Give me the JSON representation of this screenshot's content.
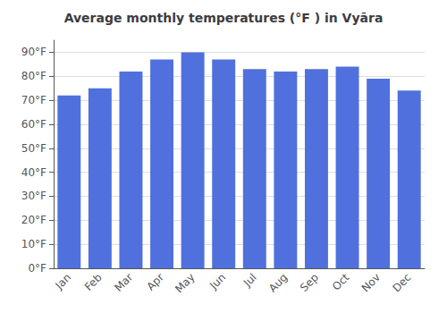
{
  "chart_data": {
    "type": "bar",
    "title": "Average monthly temperatures (°F ) in Vyāra",
    "categories": [
      "Jan",
      "Feb",
      "Mar",
      "Apr",
      "May",
      "Jun",
      "Jul",
      "Aug",
      "Sep",
      "Oct",
      "Nov",
      "Dec"
    ],
    "values": [
      72,
      75,
      82,
      87,
      90,
      87,
      83,
      82,
      83,
      84,
      79,
      74
    ],
    "ylim": [
      0,
      95
    ],
    "yticks": [
      {
        "value": 0,
        "label": "0°F"
      },
      {
        "value": 10,
        "label": "10°F"
      },
      {
        "value": 20,
        "label": "20°F"
      },
      {
        "value": 30,
        "label": "30°F"
      },
      {
        "value": 40,
        "label": "40°F"
      },
      {
        "value": 50,
        "label": "50°F"
      },
      {
        "value": 60,
        "label": "60°F"
      },
      {
        "value": 70,
        "label": "70°F"
      },
      {
        "value": 80,
        "label": "80°F"
      },
      {
        "value": 90,
        "label": "90°F"
      }
    ],
    "grid": true
  }
}
